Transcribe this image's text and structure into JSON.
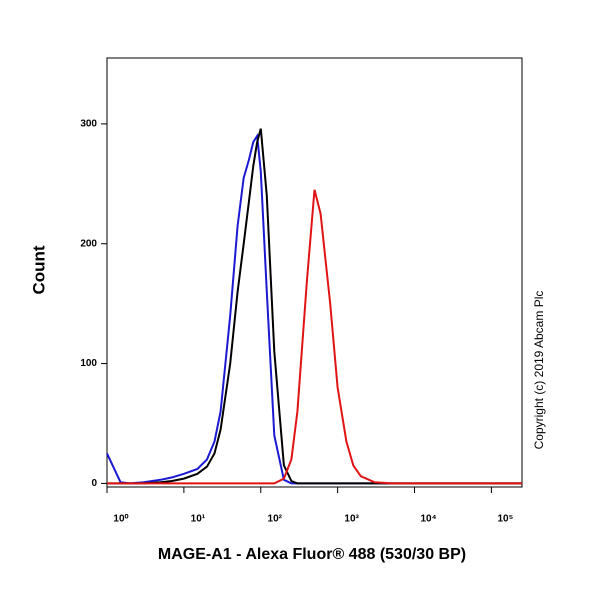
{
  "chart_data": {
    "type": "line",
    "x_label": "MAGE-A1 - Alexa Fluor® 488 (530/30 BP)",
    "y_label": "Count",
    "annotation": "Copyright (c) 2019 Abcam Plc",
    "x_scale": "log",
    "xlim": [
      1,
      250000
    ],
    "ylim": [
      -3,
      355
    ],
    "xticks": [
      {
        "value": 1,
        "label": "10⁰"
      },
      {
        "value": 10,
        "label": "10¹"
      },
      {
        "value": 100,
        "label": "10²"
      },
      {
        "value": 1000,
        "label": "10³"
      },
      {
        "value": 10000,
        "label": "10⁴"
      },
      {
        "value": 100000,
        "label": "10⁵"
      }
    ],
    "yticks": [
      0,
      100,
      200,
      300
    ],
    "x": [
      1,
      1.5,
      2,
      3,
      5,
      7,
      10,
      15,
      20,
      25,
      30,
      40,
      50,
      60,
      70,
      80,
      90,
      100,
      120,
      150,
      200,
      250,
      300,
      400,
      500,
      600,
      700,
      800,
      1000,
      1300,
      1600,
      2000,
      3000,
      5000,
      10000,
      100000,
      250000
    ],
    "series": [
      {
        "color": "#1a1ad0",
        "values": [
          25,
          1,
          0,
          1,
          3,
          5,
          8,
          12,
          20,
          35,
          60,
          140,
          215,
          255,
          270,
          285,
          290,
          260,
          160,
          40,
          3,
          0,
          0,
          0,
          0,
          0,
          0,
          0,
          0,
          0,
          0,
          0,
          0,
          0,
          0,
          0,
          0
        ]
      },
      {
        "color": "#000000",
        "values": [
          0,
          0,
          0,
          0,
          1,
          2,
          4,
          8,
          14,
          25,
          45,
          100,
          160,
          200,
          235,
          265,
          285,
          296,
          240,
          110,
          15,
          2,
          0,
          0,
          0,
          0,
          0,
          0,
          0,
          0,
          0,
          0,
          0,
          0,
          0,
          0,
          0
        ]
      },
      {
        "color": "#e01414",
        "values": [
          0,
          0,
          0,
          0,
          0,
          0,
          0,
          0,
          0,
          0,
          0,
          0,
          0,
          0,
          0,
          0,
          0,
          0,
          0,
          0,
          4,
          20,
          60,
          170,
          245,
          225,
          185,
          150,
          80,
          35,
          15,
          6,
          1,
          0,
          0,
          0,
          0
        ]
      }
    ]
  }
}
